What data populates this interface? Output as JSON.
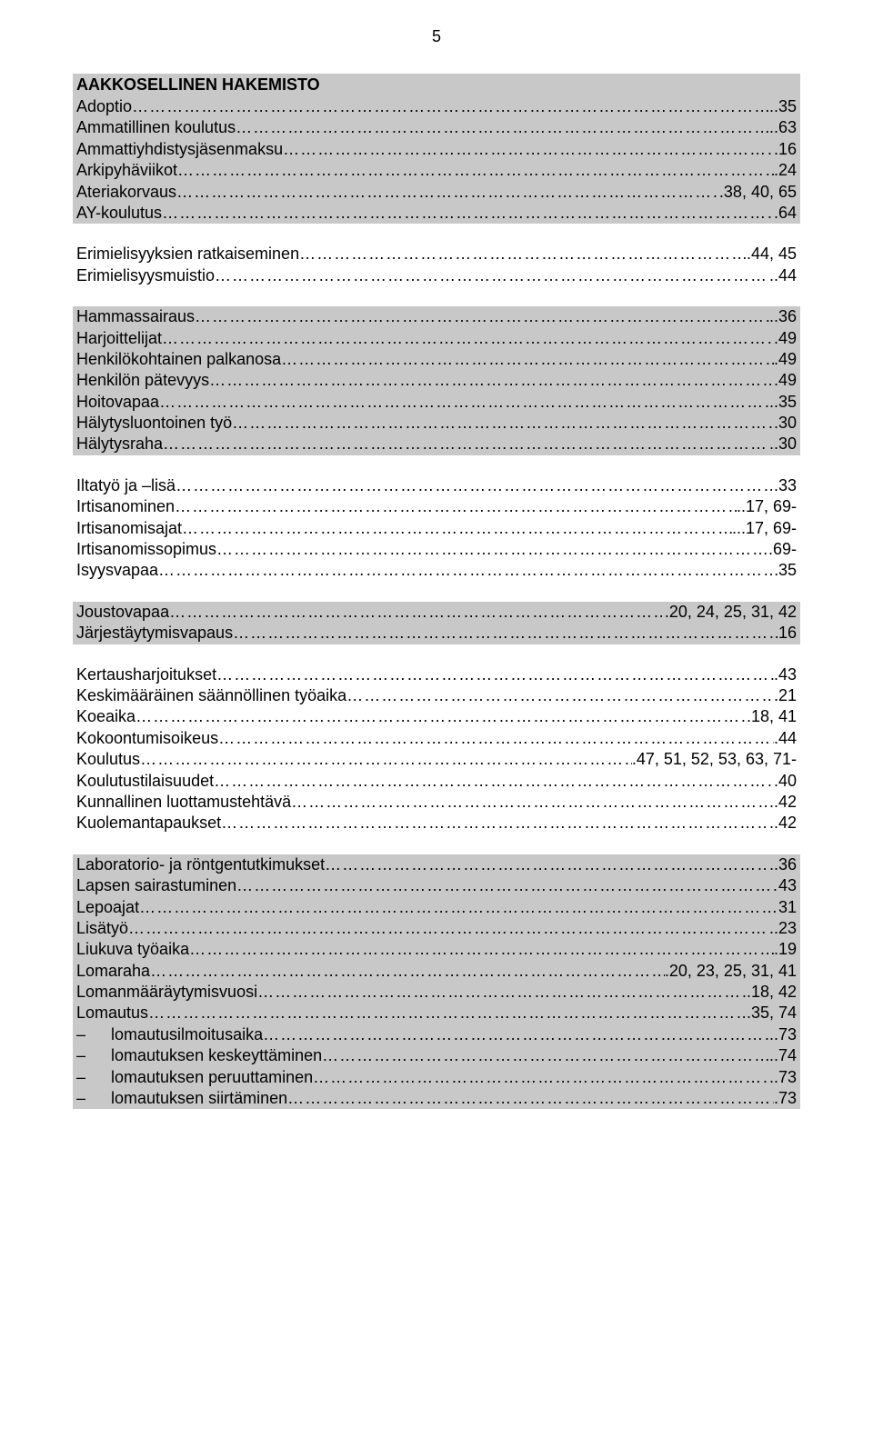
{
  "page_number": "5",
  "colors": {
    "band_gray": "#c8c8c8",
    "background": "#ffffff",
    "text": "#000000"
  },
  "title": "AAKKOSELLINEN HAKEMISTO",
  "groups": [
    {
      "bg": "gray",
      "title": true,
      "entries": [
        {
          "label": "Adoptio",
          "page": "..35"
        },
        {
          "label": "Ammatillinen koulutus",
          "page": "..63"
        },
        {
          "label": "Ammattiyhdistysjäsenmaksu",
          "page": ".16"
        },
        {
          "label": "Arkipyhäviikot",
          "page": ".24"
        },
        {
          "label": "Ateriakorvaus",
          "page": ".38, 40, 65"
        },
        {
          "label": "AY-koulutus",
          "page": ".64"
        }
      ]
    },
    {
      "bg": "white",
      "entries": [
        {
          "label": "Erimielisyyksien ratkaiseminen",
          "page": ".44, 45"
        },
        {
          "label": "Erimielisyysmuistio",
          "page": "..44"
        }
      ]
    },
    {
      "bg": "gray",
      "entries": [
        {
          "label": "Hammassairaus",
          "page": "..36"
        },
        {
          "label": "Harjoittelijat",
          "page": ".49"
        },
        {
          "label": "Henkilökohtainen palkanosa",
          "page": ".49"
        },
        {
          "label": "Henkilön pätevyys",
          "page": ".49"
        },
        {
          "label": "Hoitovapaa",
          "page": "..35"
        },
        {
          "label": "Hälytysluontoinen työ",
          "page": ".30"
        },
        {
          "label": "Hälytysraha",
          "page": "..30"
        }
      ]
    },
    {
      "bg": "white",
      "entries": [
        {
          "label": "Iltatyö ja –lisä",
          "page": ".33"
        },
        {
          "label": "Irtisanominen",
          "page": "..17, 69-"
        },
        {
          "label": "Irtisanomisajat",
          "page": "...17, 69-"
        },
        {
          "label": "Irtisanomissopimus",
          "page": ".69-"
        },
        {
          "label": "Isyysvapaa",
          "page": "35"
        }
      ]
    },
    {
      "bg": "gray",
      "entries": [
        {
          "label": "Joustovapaa",
          "page": ".20, 24, 25, 31, 42"
        },
        {
          "label": "Järjestäytymisvapaus",
          "page": "16"
        }
      ]
    },
    {
      "bg": "white",
      "entries": [
        {
          "label": "Kertausharjoitukset",
          "page": ".43"
        },
        {
          "label": "Keskimääräinen säännöllinen työaika",
          "page": ".21"
        },
        {
          "label": "Koeaika",
          "page": ".18, 41"
        },
        {
          "label": "Kokoontumisoikeus",
          "page": ".44"
        },
        {
          "label": "Koulutus",
          "page": ".47, 51, 52, 53, 63, 71-"
        },
        {
          "label": "Koulutustilaisuudet",
          "page": ".40"
        },
        {
          "label": "Kunnallinen luottamustehtävä",
          "page": "..42"
        },
        {
          "label": "Kuolemantapaukset",
          "page": "..42"
        }
      ]
    },
    {
      "bg": "gray",
      "entries": [
        {
          "label": "Laboratorio- ja röntgentutkimukset",
          "page": "..36"
        },
        {
          "label": "Lapsen sairastuminen",
          "page": "43"
        },
        {
          "label": "Lepoajat",
          "page": "31"
        },
        {
          "label": "Lisätyö",
          "page": "..23"
        },
        {
          "label": "Liukuva työaika",
          "page": ".19"
        },
        {
          "label": "Lomaraha",
          "page": ".20, 23, 25, 31, 41"
        },
        {
          "label": "Lomanmääräytymisvuosi",
          "page": ".18, 42"
        },
        {
          "label": "Lomautus",
          "page": ".35, 74"
        },
        {
          "label": "lomautusilmoitusaika",
          "page": "..73",
          "indent": true,
          "dash": true
        },
        {
          "label": "lomautuksen keskeyttäminen",
          "page": "..74",
          "indent": true,
          "dash": true
        },
        {
          "label": "lomautuksen peruuttaminen",
          "page": "..73",
          "indent": true,
          "dash": true
        },
        {
          "label": "lomautuksen siirtäminen",
          "page": ".73",
          "indent": true,
          "dash": true
        }
      ]
    }
  ]
}
